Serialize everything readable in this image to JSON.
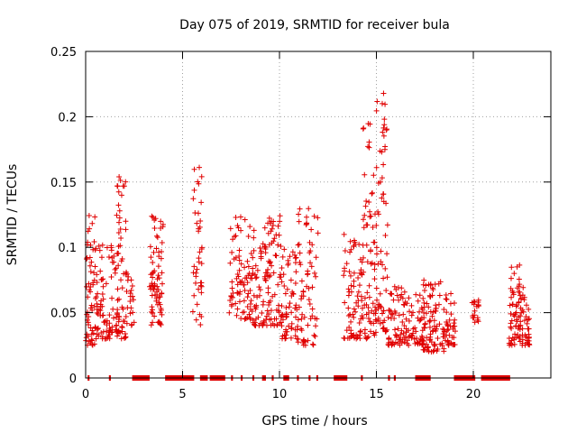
{
  "chart_data": {
    "type": "scatter",
    "title": "Day 075 of 2019, SRMTID for receiver bula",
    "xlabel": "GPS time / hours",
    "ylabel": "SRMTID / TECUs",
    "xlim": [
      0,
      24
    ],
    "ylim": [
      0,
      0.25
    ],
    "x_ticks": [
      0,
      5,
      10,
      15,
      20
    ],
    "x_tick_labels": [
      "0",
      "5",
      "10",
      "15",
      "20"
    ],
    "y_ticks": [
      0,
      0.05,
      0.1,
      0.15,
      0.2,
      0.25
    ],
    "y_tick_labels": [
      "0",
      "0.05",
      "0.1",
      "0.15",
      "0.2",
      "0.25"
    ],
    "grid": true,
    "marker": "+",
    "color": "#e00000",
    "point_clusters": [
      {
        "x_start": 0.0,
        "x_end": 0.5,
        "y_min": 0.025,
        "y_max": 0.125,
        "count": 55
      },
      {
        "x_start": 0.5,
        "x_end": 1.5,
        "y_min": 0.03,
        "y_max": 0.105,
        "count": 80
      },
      {
        "x_start": 1.5,
        "x_end": 2.1,
        "y_min": 0.03,
        "y_max": 0.155,
        "count": 70
      },
      {
        "x_start": 2.1,
        "x_end": 2.5,
        "y_min": 0.04,
        "y_max": 0.085,
        "count": 20
      },
      {
        "x_start": 3.3,
        "x_end": 4.0,
        "y_min": 0.04,
        "y_max": 0.13,
        "count": 75
      },
      {
        "x_start": 5.5,
        "x_end": 6.0,
        "y_min": 0.04,
        "y_max": 0.162,
        "count": 40
      },
      {
        "x_start": 7.4,
        "x_end": 8.6,
        "y_min": 0.045,
        "y_max": 0.125,
        "count": 80
      },
      {
        "x_start": 8.6,
        "x_end": 9.3,
        "y_min": 0.04,
        "y_max": 0.115,
        "count": 55
      },
      {
        "x_start": 9.3,
        "x_end": 10.1,
        "y_min": 0.04,
        "y_max": 0.125,
        "count": 65
      },
      {
        "x_start": 10.1,
        "x_end": 10.9,
        "y_min": 0.03,
        "y_max": 0.1,
        "count": 60
      },
      {
        "x_start": 10.9,
        "x_end": 12.0,
        "y_min": 0.025,
        "y_max": 0.13,
        "count": 70
      },
      {
        "x_start": 13.3,
        "x_end": 14.3,
        "y_min": 0.03,
        "y_max": 0.11,
        "count": 75
      },
      {
        "x_start": 14.3,
        "x_end": 15.0,
        "y_min": 0.03,
        "y_max": 0.195,
        "count": 70
      },
      {
        "x_start": 15.0,
        "x_end": 15.6,
        "y_min": 0.035,
        "y_max": 0.22,
        "count": 65
      },
      {
        "x_start": 15.6,
        "x_end": 16.6,
        "y_min": 0.025,
        "y_max": 0.07,
        "count": 70
      },
      {
        "x_start": 16.6,
        "x_end": 17.4,
        "y_min": 0.025,
        "y_max": 0.065,
        "count": 45
      },
      {
        "x_start": 17.4,
        "x_end": 18.5,
        "y_min": 0.02,
        "y_max": 0.075,
        "count": 90
      },
      {
        "x_start": 18.5,
        "x_end": 19.1,
        "y_min": 0.025,
        "y_max": 0.065,
        "count": 40
      },
      {
        "x_start": 19.9,
        "x_end": 20.3,
        "y_min": 0.04,
        "y_max": 0.06,
        "count": 18
      },
      {
        "x_start": 21.8,
        "x_end": 22.4,
        "y_min": 0.025,
        "y_max": 0.088,
        "count": 55
      },
      {
        "x_start": 22.4,
        "x_end": 22.9,
        "y_min": 0.025,
        "y_max": 0.07,
        "count": 45
      }
    ],
    "baseline_segments": [
      [
        0.1,
        0.2
      ],
      [
        1.2,
        1.3
      ],
      [
        2.4,
        3.3
      ],
      [
        4.1,
        5.6
      ],
      [
        5.9,
        6.3
      ],
      [
        6.4,
        7.2
      ],
      [
        7.5,
        7.6
      ],
      [
        8.0,
        8.1
      ],
      [
        8.6,
        8.7
      ],
      [
        9.1,
        9.3
      ],
      [
        9.6,
        9.7
      ],
      [
        10.2,
        10.5
      ],
      [
        10.9,
        11.0
      ],
      [
        11.5,
        11.6
      ],
      [
        11.9,
        12.0
      ],
      [
        12.8,
        13.5
      ],
      [
        14.2,
        14.3
      ],
      [
        15.6,
        15.7
      ],
      [
        15.9,
        16.0
      ],
      [
        17.0,
        17.8
      ],
      [
        19.0,
        20.1
      ],
      [
        20.4,
        21.9
      ]
    ]
  }
}
